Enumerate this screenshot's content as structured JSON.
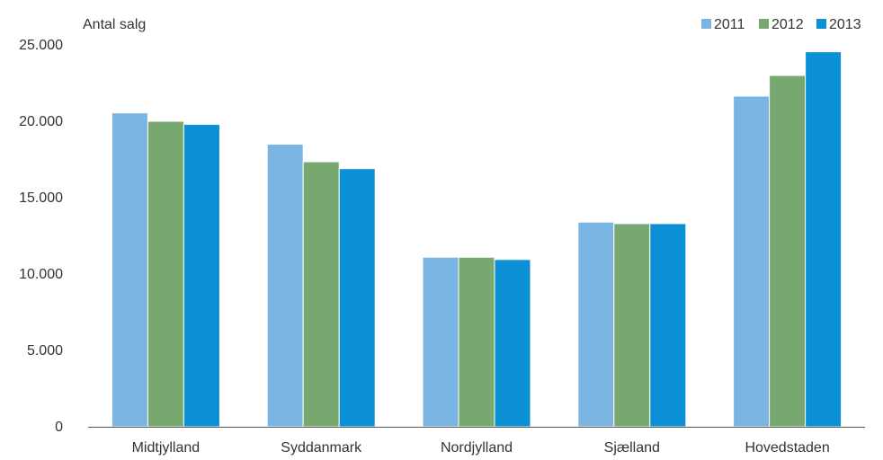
{
  "chart_data": {
    "type": "bar",
    "ylabel": "Antal salg",
    "xlabel": "",
    "categories": [
      "Midtjylland",
      "Syddanmark",
      "Nordjylland",
      "Sjælland",
      "Hovedstaden"
    ],
    "series": [
      {
        "name": "2011",
        "color": "#7ab4e2",
        "values": [
          20550,
          18500,
          11100,
          13400,
          21650
        ]
      },
      {
        "name": "2012",
        "color": "#76a870",
        "values": [
          20000,
          17350,
          11100,
          13300,
          23000
        ]
      },
      {
        "name": "2013",
        "color": "#0b8fd5",
        "values": [
          19800,
          16900,
          10950,
          13300,
          24550
        ]
      }
    ],
    "ylim": [
      0,
      25000
    ],
    "yticks": [
      0,
      5000,
      10000,
      15000,
      20000,
      25000
    ],
    "ytick_labels": [
      "0",
      "5.000",
      "10.000",
      "15.000",
      "20.000",
      "25.000"
    ],
    "grid": false,
    "legend_position": "top-right"
  }
}
